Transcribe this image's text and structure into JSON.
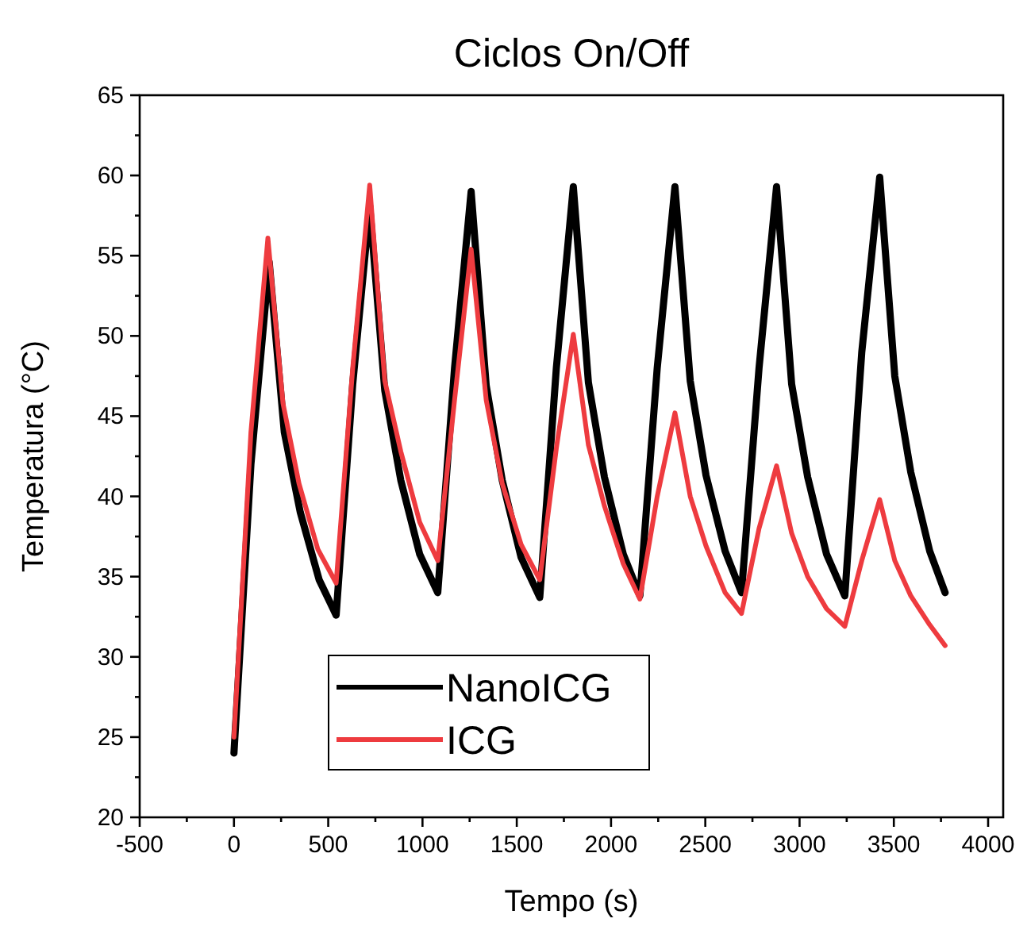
{
  "chart_data": {
    "type": "line",
    "title": "Ciclos On/Off",
    "xlabel": "Tempo (s)",
    "ylabel": "Temperatura (°C)",
    "xlim": [
      -500,
      4080
    ],
    "ylim": [
      20,
      65
    ],
    "xticks": [
      -500,
      {
        "value": -250,
        "label": null
      },
      0,
      {
        "value": 250,
        "label": null
      },
      500,
      {
        "value": 750,
        "label": null
      },
      1000,
      {
        "value": 1250,
        "label": null
      },
      1500,
      {
        "value": 1750,
        "label": null
      },
      2000,
      {
        "value": 2250,
        "label": null
      },
      2500,
      {
        "value": 2750,
        "label": null
      },
      3000,
      {
        "value": 3250,
        "label": null
      },
      3500,
      {
        "value": 3750,
        "label": null
      },
      4000
    ],
    "yticks": [
      20,
      {
        "value": 22.5,
        "label": null
      },
      25,
      {
        "value": 27.5,
        "label": null
      },
      30,
      {
        "value": 32.5,
        "label": null
      },
      35,
      {
        "value": 37.5,
        "label": null
      },
      40,
      {
        "value": 42.5,
        "label": null
      },
      45,
      {
        "value": 47.5,
        "label": null
      },
      50,
      {
        "value": 52.5,
        "label": null
      },
      55,
      {
        "value": 57.5,
        "label": null
      },
      60,
      {
        "value": 62.5,
        "label": null
      },
      65
    ],
    "grid": false,
    "legend": "bottom left",
    "marker": "none",
    "line_style": "solid",
    "series": [
      {
        "name": "NanoICG",
        "color": "#000000",
        "x": [
          0,
          90,
          187,
          267,
          352,
          452,
          542,
          630,
          720,
          800,
          885,
          985,
          1081,
          1170,
          1258,
          1338,
          1423,
          1523,
          1622,
          1710,
          1800,
          1880,
          1965,
          2065,
          2153,
          2245,
          2339,
          2420,
          2504,
          2605,
          2692,
          2785,
          2878,
          2958,
          3043,
          3143,
          3240,
          3330,
          3425,
          3505,
          3590,
          3690,
          3772
        ],
        "values": [
          24,
          42,
          54.6,
          44.0,
          39.0,
          34.8,
          32.6,
          47,
          58.1,
          46.6,
          41.0,
          36.4,
          34.0,
          48,
          59.0,
          46.9,
          41.0,
          36.2,
          33.7,
          48,
          59.3,
          47.1,
          41.2,
          36.4,
          33.8,
          48,
          59.3,
          47.2,
          41.3,
          36.6,
          34.0,
          48,
          59.3,
          47.0,
          41.2,
          36.4,
          33.8,
          49,
          59.9,
          47.5,
          41.5,
          36.6,
          34.0
        ]
      },
      {
        "name": "ICG",
        "color": "#ee3b3f",
        "x": [
          0,
          90,
          180,
          260,
          345,
          445,
          542,
          630,
          720,
          800,
          885,
          985,
          1081,
          1170,
          1258,
          1338,
          1423,
          1523,
          1622,
          1710,
          1800,
          1880,
          1965,
          2065,
          2153,
          2245,
          2339,
          2420,
          2504,
          2605,
          2692,
          2785,
          2878,
          2958,
          3043,
          3143,
          3240,
          3330,
          3425,
          3505,
          3590,
          3690,
          3772
        ],
        "values": [
          25,
          44,
          56.1,
          45.8,
          40.8,
          36.7,
          34.6,
          48,
          59.4,
          47.2,
          42.8,
          38.4,
          36.0,
          46,
          55.4,
          46.0,
          40.8,
          37.0,
          34.8,
          43,
          50.1,
          43.2,
          39.4,
          35.8,
          33.6,
          40,
          45.2,
          40.0,
          36.9,
          34.0,
          32.7,
          38,
          41.9,
          37.7,
          35.0,
          33.0,
          31.9,
          36,
          39.8,
          36.0,
          33.8,
          32.0,
          30.7
        ]
      }
    ]
  }
}
